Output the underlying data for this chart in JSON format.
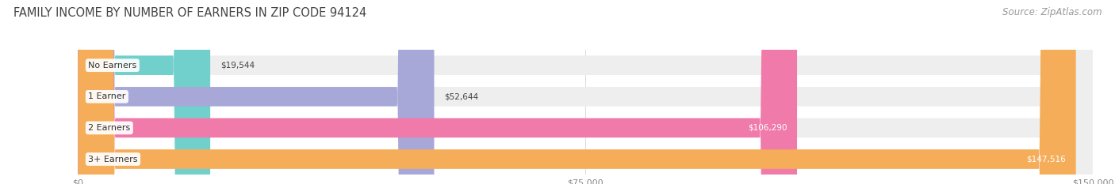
{
  "title": "FAMILY INCOME BY NUMBER OF EARNERS IN ZIP CODE 94124",
  "source": "Source: ZipAtlas.com",
  "categories": [
    "No Earners",
    "1 Earner",
    "2 Earners",
    "3+ Earners"
  ],
  "values": [
    19544,
    52644,
    106290,
    147516
  ],
  "bar_colors": [
    "#72d0cc",
    "#a8a8d8",
    "#f07aaa",
    "#f5ad5a"
  ],
  "bar_bg_color": "#eeeeee",
  "label_colors": [
    "#555555",
    "#555555",
    "#ffffff",
    "#ffffff"
  ],
  "value_labels": [
    "$19,544",
    "$52,644",
    "$106,290",
    "$147,516"
  ],
  "x_max": 150000,
  "x_ticks": [
    0,
    75000,
    150000
  ],
  "x_tick_labels": [
    "$0",
    "$75,000",
    "$150,000"
  ],
  "title_color": "#444444",
  "source_color": "#999999",
  "title_fontsize": 10.5,
  "source_fontsize": 8.5,
  "bar_label_fontsize": 8,
  "value_fontsize": 7.5,
  "tick_fontsize": 8,
  "background_color": "#ffffff"
}
